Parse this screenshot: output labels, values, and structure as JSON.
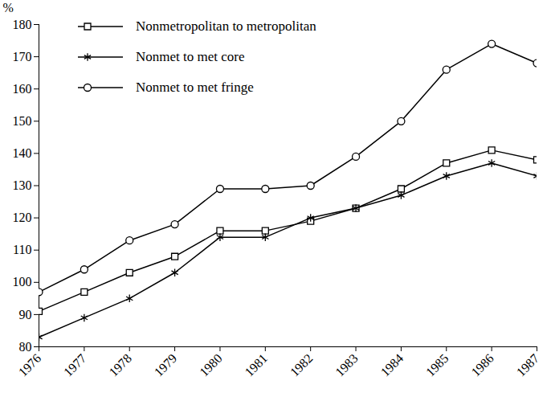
{
  "chart_data": {
    "type": "line",
    "y_label": "%",
    "x": [
      1976,
      1977,
      1978,
      1979,
      1980,
      1981,
      1982,
      1983,
      1984,
      1985,
      1986,
      1987
    ],
    "xlim": [
      1976,
      1987
    ],
    "xticks": [
      1976,
      1977,
      1978,
      1979,
      1980,
      1981,
      1982,
      1983,
      1984,
      1985,
      1986,
      1987
    ],
    "ylim": [
      80,
      180
    ],
    "yticks": [
      80,
      90,
      100,
      110,
      120,
      130,
      140,
      150,
      160,
      170,
      180
    ],
    "grid": false,
    "legend": "top-left",
    "series": [
      {
        "name": "Nonmetropolitan to metropolitan",
        "color": "#000000",
        "marker": "square",
        "values": [
          91,
          97,
          103,
          108,
          116,
          116,
          119,
          123,
          129,
          137,
          141,
          138
        ]
      },
      {
        "name": "Nonmet to met core",
        "color": "#000000",
        "marker": "asterisk",
        "values": [
          83,
          89,
          95,
          103,
          114,
          114,
          120,
          123,
          127,
          133,
          137,
          133
        ]
      },
      {
        "name": "Nonmet to met fringe",
        "color": "#000000",
        "marker": "circle",
        "values": [
          97,
          104,
          113,
          118,
          129,
          129,
          130,
          139,
          150,
          166,
          174,
          168
        ]
      }
    ]
  }
}
